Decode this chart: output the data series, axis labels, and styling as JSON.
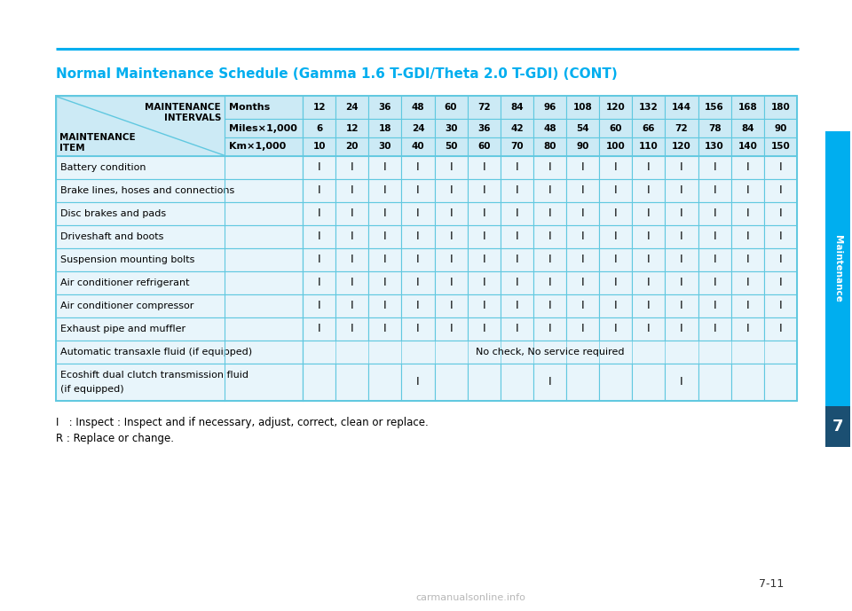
{
  "title": "Normal Maintenance Schedule (Gamma 1.6 T-GDI/Theta 2.0 T-GDI) (CONT)",
  "title_color": "#00AEEF",
  "page_label": "7-11",
  "side_tab_text": "Maintenance",
  "side_tab_num": "7",
  "header_bg": "#CCEAF5",
  "row_bg": "#E8F5FB",
  "border_color": "#60C8E0",
  "intervals_months": [
    "12",
    "24",
    "36",
    "48",
    "60",
    "72",
    "84",
    "96",
    "108",
    "120",
    "132",
    "144",
    "156",
    "168",
    "180"
  ],
  "intervals_miles": [
    "6",
    "12",
    "18",
    "24",
    "30",
    "36",
    "42",
    "48",
    "54",
    "60",
    "66",
    "72",
    "78",
    "84",
    "90"
  ],
  "intervals_km": [
    "10",
    "20",
    "30",
    "40",
    "50",
    "60",
    "70",
    "80",
    "90",
    "100",
    "110",
    "120",
    "130",
    "140",
    "150"
  ],
  "rows": [
    {
      "name": "Battery condition",
      "values": [
        "I",
        "I",
        "I",
        "I",
        "I",
        "I",
        "I",
        "I",
        "I",
        "I",
        "I",
        "I",
        "I",
        "I",
        "I"
      ],
      "special": null
    },
    {
      "name": "Brake lines, hoses and connections",
      "values": [
        "I",
        "I",
        "I",
        "I",
        "I",
        "I",
        "I",
        "I",
        "I",
        "I",
        "I",
        "I",
        "I",
        "I",
        "I"
      ],
      "special": null
    },
    {
      "name": "Disc brakes and pads",
      "values": [
        "I",
        "I",
        "I",
        "I",
        "I",
        "I",
        "I",
        "I",
        "I",
        "I",
        "I",
        "I",
        "I",
        "I",
        "I"
      ],
      "special": null
    },
    {
      "name": "Driveshaft and boots",
      "values": [
        "I",
        "I",
        "I",
        "I",
        "I",
        "I",
        "I",
        "I",
        "I",
        "I",
        "I",
        "I",
        "I",
        "I",
        "I"
      ],
      "special": null
    },
    {
      "name": "Suspension mounting bolts",
      "values": [
        "I",
        "I",
        "I",
        "I",
        "I",
        "I",
        "I",
        "I",
        "I",
        "I",
        "I",
        "I",
        "I",
        "I",
        "I"
      ],
      "special": null
    },
    {
      "name": "Air conditioner refrigerant",
      "values": [
        "I",
        "I",
        "I",
        "I",
        "I",
        "I",
        "I",
        "I",
        "I",
        "I",
        "I",
        "I",
        "I",
        "I",
        "I"
      ],
      "special": null
    },
    {
      "name": "Air conditioner compressor",
      "values": [
        "I",
        "I",
        "I",
        "I",
        "I",
        "I",
        "I",
        "I",
        "I",
        "I",
        "I",
        "I",
        "I",
        "I",
        "I"
      ],
      "special": null
    },
    {
      "name": "Exhaust pipe and muffler",
      "values": [
        "I",
        "I",
        "I",
        "I",
        "I",
        "I",
        "I",
        "I",
        "I",
        "I",
        "I",
        "I",
        "I",
        "I",
        "I"
      ],
      "special": null
    },
    {
      "name": "Automatic transaxle fluid (if equipped)",
      "values": [
        "",
        "",
        "",
        "",
        "",
        "",
        "",
        "",
        "",
        "",
        "",
        "",
        "",
        "",
        ""
      ],
      "special": "no_check"
    },
    {
      "name": "Ecoshift dual clutch transmission fluid\n(if equipped)",
      "values": [
        "",
        "",
        "",
        "I",
        "",
        "",
        "",
        "I",
        "",
        "",
        "",
        "I",
        "",
        "",
        ""
      ],
      "special": null
    }
  ],
  "footnote1": "I   : Inspect : Inspect and if necessary, adjust, correct, clean or replace.",
  "footnote2": "R : Replace or change.",
  "top_line_color": "#00AEEF",
  "fig_width": 9.6,
  "fig_height": 6.89
}
